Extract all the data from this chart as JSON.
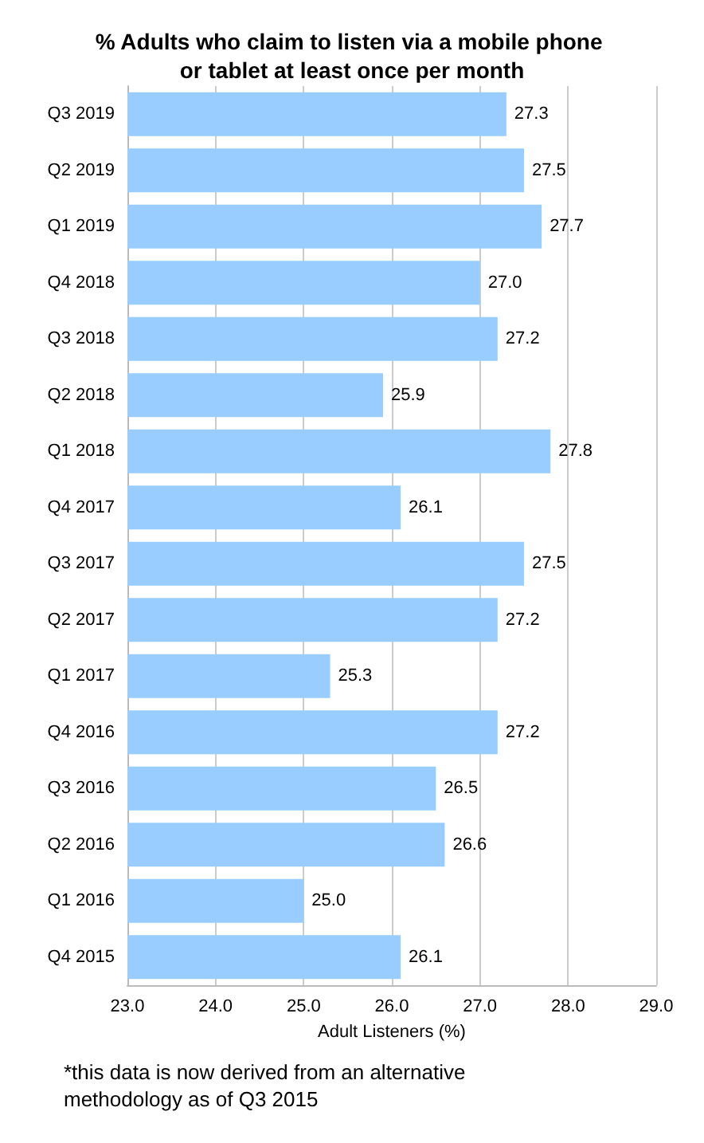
{
  "chart_data": {
    "type": "bar",
    "orientation": "horizontal",
    "title": "% Adults who claim to listen via a mobile phone or tablet at least once per month",
    "xlabel": "Adult Listeners (%)",
    "categories": [
      "Q3 2019",
      "Q2 2019",
      "Q1 2019",
      "Q4 2018",
      "Q3 2018",
      "Q2 2018",
      "Q1 2018",
      "Q4 2017",
      "Q3 2017",
      "Q2 2017",
      "Q1 2017",
      "Q4 2016",
      "Q3 2016",
      "Q2 2016",
      "Q1 2016",
      "Q4 2015"
    ],
    "values": [
      27.3,
      27.5,
      27.7,
      27.0,
      27.2,
      25.9,
      27.8,
      26.1,
      27.5,
      27.2,
      25.3,
      27.2,
      26.5,
      26.6,
      25.0,
      26.1
    ],
    "value_labels": [
      "27.3",
      "27.5",
      "27.7",
      "27.0",
      "27.2",
      "25.9",
      "27.8",
      "26.1",
      "27.5",
      "27.2",
      "25.3",
      "27.2",
      "26.5",
      "26.6",
      "25.0",
      "26.1"
    ],
    "color": "#99ccff",
    "xlim": [
      23,
      29
    ],
    "xticks": [
      {
        "value": 23,
        "label": "23.0"
      },
      {
        "value": 24,
        "label": "24.0"
      },
      {
        "value": 25,
        "label": "25.0"
      },
      {
        "value": 26,
        "label": "26.0"
      },
      {
        "value": 27,
        "label": "27.0"
      },
      {
        "value": 28,
        "label": "28.0"
      },
      {
        "value": 29,
        "label": "29.0"
      }
    ],
    "grid": "x",
    "annotations": [
      "*this data is now derived from an alternative methodology as of Q3 2015"
    ]
  }
}
